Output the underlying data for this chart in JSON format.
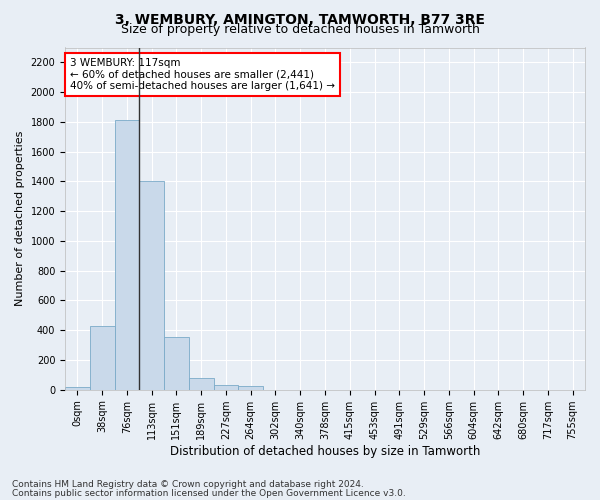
{
  "title": "3, WEMBURY, AMINGTON, TAMWORTH, B77 3RE",
  "subtitle": "Size of property relative to detached houses in Tamworth",
  "xlabel": "Distribution of detached houses by size in Tamworth",
  "ylabel": "Number of detached properties",
  "bar_labels": [
    "0sqm",
    "38sqm",
    "76sqm",
    "113sqm",
    "151sqm",
    "189sqm",
    "227sqm",
    "264sqm",
    "302sqm",
    "340sqm",
    "378sqm",
    "415sqm",
    "453sqm",
    "491sqm",
    "529sqm",
    "566sqm",
    "604sqm",
    "642sqm",
    "680sqm",
    "717sqm",
    "755sqm"
  ],
  "bar_values": [
    15,
    425,
    1810,
    1405,
    355,
    80,
    30,
    25,
    0,
    0,
    0,
    0,
    0,
    0,
    0,
    0,
    0,
    0,
    0,
    0,
    0
  ],
  "bar_color": "#c9d9ea",
  "bar_edge_color": "#7aaac8",
  "ylim": [
    0,
    2300
  ],
  "yticks": [
    0,
    200,
    400,
    600,
    800,
    1000,
    1200,
    1400,
    1600,
    1800,
    2000,
    2200
  ],
  "property_label": "3 WEMBURY: 117sqm",
  "annotation_line1": "← 60% of detached houses are smaller (2,441)",
  "annotation_line2": "40% of semi-detached houses are larger (1,641) →",
  "vline_x": 3.0,
  "footer_line1": "Contains HM Land Registry data © Crown copyright and database right 2024.",
  "footer_line2": "Contains public sector information licensed under the Open Government Licence v3.0.",
  "background_color": "#e8eef5",
  "plot_bg_color": "#e8eef5",
  "grid_color": "#ffffff",
  "title_fontsize": 10,
  "subtitle_fontsize": 9,
  "tick_fontsize": 7,
  "ylabel_fontsize": 8,
  "xlabel_fontsize": 8.5,
  "annot_fontsize": 7.5,
  "footer_fontsize": 6.5
}
